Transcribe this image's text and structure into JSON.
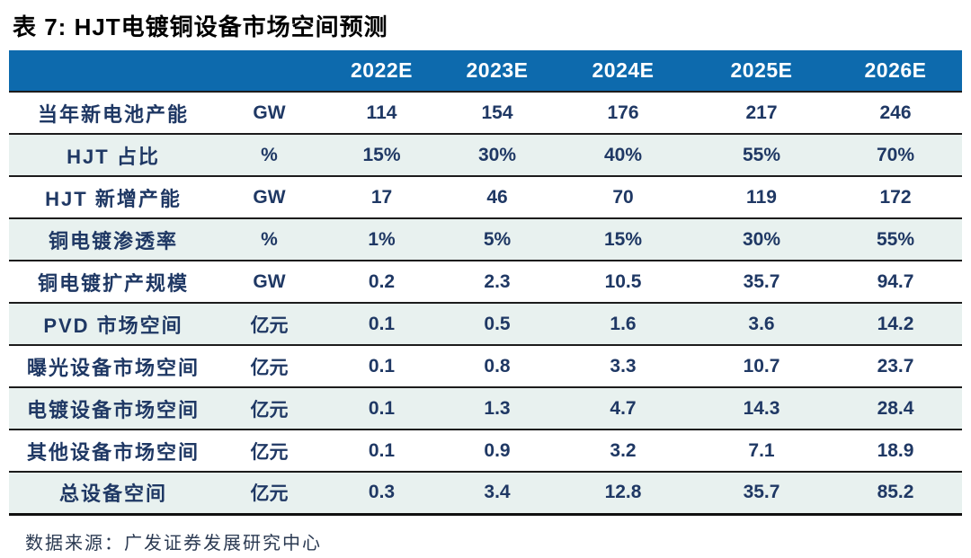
{
  "title": "表 7:  HJT电镀铜设备市场空间预测",
  "footer": {
    "source": "数据来源：广发证券发展研究中心"
  },
  "colors": {
    "header_blue": "#0d6aad",
    "shaded_row": "#e8f1ef",
    "text_navy": "#1f3864",
    "border_dark": "#1c1c1c",
    "title_black": "#000000",
    "footer_gray": "#2b3a52"
  },
  "table": {
    "columns": [
      "",
      "",
      "2022E",
      "2023E",
      "2024E",
      "2025E",
      "2026E"
    ],
    "rows": [
      {
        "label": "当年新电池产能",
        "unit": "GW",
        "values": [
          "114",
          "154",
          "176",
          "217",
          "246"
        ]
      },
      {
        "label": "HJT 占比",
        "unit": "%",
        "values": [
          "15%",
          "30%",
          "40%",
          "55%",
          "70%"
        ]
      },
      {
        "label": "HJT 新增产能",
        "unit": "GW",
        "values": [
          "17",
          "46",
          "70",
          "119",
          "172"
        ]
      },
      {
        "label": "铜电镀渗透率",
        "unit": "%",
        "values": [
          "1%",
          "5%",
          "15%",
          "30%",
          "55%"
        ]
      },
      {
        "label": "铜电镀扩产规模",
        "unit": "GW",
        "values": [
          "0.2",
          "2.3",
          "10.5",
          "35.7",
          "94.7"
        ]
      },
      {
        "label": "PVD 市场空间",
        "unit": "亿元",
        "values": [
          "0.1",
          "0.5",
          "1.6",
          "3.6",
          "14.2"
        ]
      },
      {
        "label": "曝光设备市场空间",
        "unit": "亿元",
        "values": [
          "0.1",
          "0.8",
          "3.3",
          "10.7",
          "23.7"
        ]
      },
      {
        "label": "电镀设备市场空间",
        "unit": "亿元",
        "values": [
          "0.1",
          "1.3",
          "4.7",
          "14.3",
          "28.4"
        ]
      },
      {
        "label": "其他设备市场空间",
        "unit": "亿元",
        "values": [
          "0.1",
          "0.9",
          "3.2",
          "7.1",
          "18.9"
        ]
      },
      {
        "label": "总设备空间",
        "unit": "亿元",
        "values": [
          "0.3",
          "3.4",
          "12.8",
          "35.7",
          "85.2"
        ]
      }
    ]
  }
}
